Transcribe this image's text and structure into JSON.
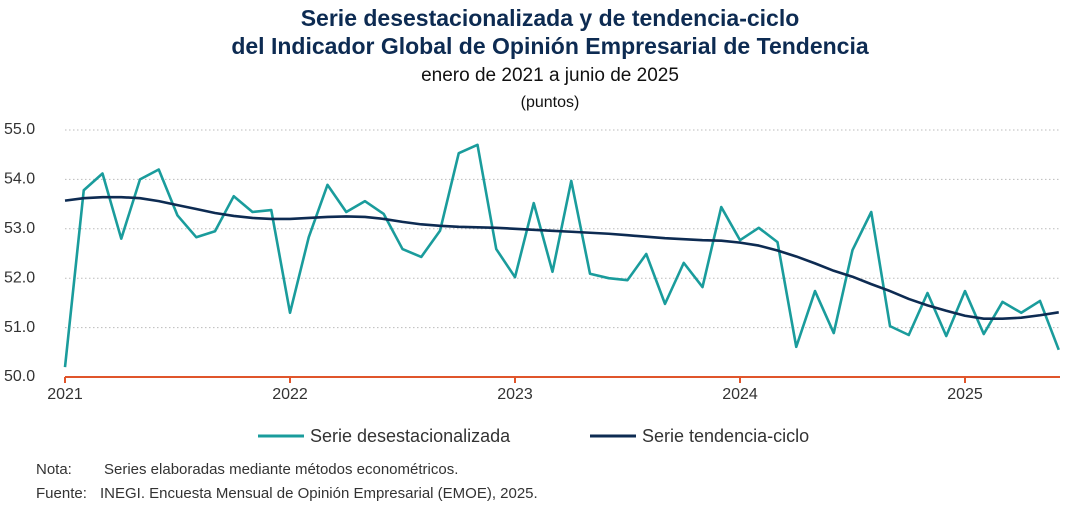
{
  "chart_data": {
    "type": "line",
    "title": [
      "Serie desestacionalizada y de tendencia-ciclo",
      "del Indicador Global de Opinión Empresarial de Tendencia"
    ],
    "subtitle": "enero de 2021 a junio de 2025",
    "unit": "(puntos)",
    "categories": [
      "2021",
      null,
      null,
      null,
      null,
      null,
      null,
      null,
      null,
      null,
      null,
      null,
      "2022",
      null,
      null,
      null,
      null,
      null,
      null,
      null,
      null,
      null,
      null,
      null,
      "2023",
      null,
      null,
      null,
      null,
      null,
      null,
      null,
      null,
      null,
      null,
      null,
      "2024",
      null,
      null,
      null,
      null,
      null,
      null,
      null,
      null,
      null,
      null,
      null,
      "2025",
      null,
      null,
      null,
      null,
      null
    ],
    "series": [
      {
        "name": "Serie desestacionalizada",
        "color": "#1a9c9c",
        "values": [
          50.2,
          53.78,
          54.12,
          52.8,
          54.0,
          54.2,
          53.27,
          52.83,
          52.95,
          53.66,
          53.34,
          53.38,
          51.3,
          52.83,
          53.89,
          53.34,
          53.56,
          53.3,
          52.59,
          52.43,
          52.96,
          54.53,
          54.7,
          52.59,
          52.02,
          53.52,
          52.13,
          53.97,
          52.09,
          52.0,
          51.96,
          52.49,
          51.48,
          52.31,
          51.82,
          53.44,
          52.77,
          53.02,
          52.73,
          50.61,
          51.74,
          50.89,
          52.57,
          53.34,
          51.03,
          50.85,
          51.7,
          50.83,
          51.74,
          50.87,
          51.52,
          51.3,
          51.54,
          50.55
        ]
      },
      {
        "name": "Serie tendencia-ciclo",
        "color": "#0d2b52",
        "values": [
          53.57,
          53.62,
          53.64,
          53.64,
          53.62,
          53.56,
          53.48,
          53.4,
          53.32,
          53.26,
          53.22,
          53.2,
          53.2,
          53.22,
          53.24,
          53.25,
          53.24,
          53.2,
          53.14,
          53.09,
          53.06,
          53.04,
          53.03,
          53.02,
          53.0,
          52.98,
          52.96,
          52.94,
          52.92,
          52.9,
          52.87,
          52.84,
          52.81,
          52.79,
          52.77,
          52.76,
          52.72,
          52.66,
          52.56,
          52.44,
          52.3,
          52.15,
          52.03,
          51.88,
          51.74,
          51.58,
          51.45,
          51.34,
          51.24,
          51.18,
          51.18,
          51.2,
          51.25,
          51.31
        ]
      }
    ],
    "ylim": [
      50,
      55
    ],
    "yticks": [
      {
        "value": 50,
        "label": "50.0"
      },
      {
        "value": 51,
        "label": "51.0"
      },
      {
        "value": 52,
        "label": "52.0"
      },
      {
        "value": 53,
        "label": "53.0"
      },
      {
        "value": 54,
        "label": "54.0"
      },
      {
        "value": 55,
        "label": "55.0"
      }
    ],
    "grid": true,
    "legend": "bottom",
    "axis_color": "#e0552b",
    "note": {
      "label": "Nota:",
      "text": "Series elaboradas mediante métodos econométricos."
    },
    "source": {
      "label": "Fuente:",
      "text": "INEGI. Encuesta Mensual de Opinión Empresarial (EMOE), 2025."
    }
  }
}
